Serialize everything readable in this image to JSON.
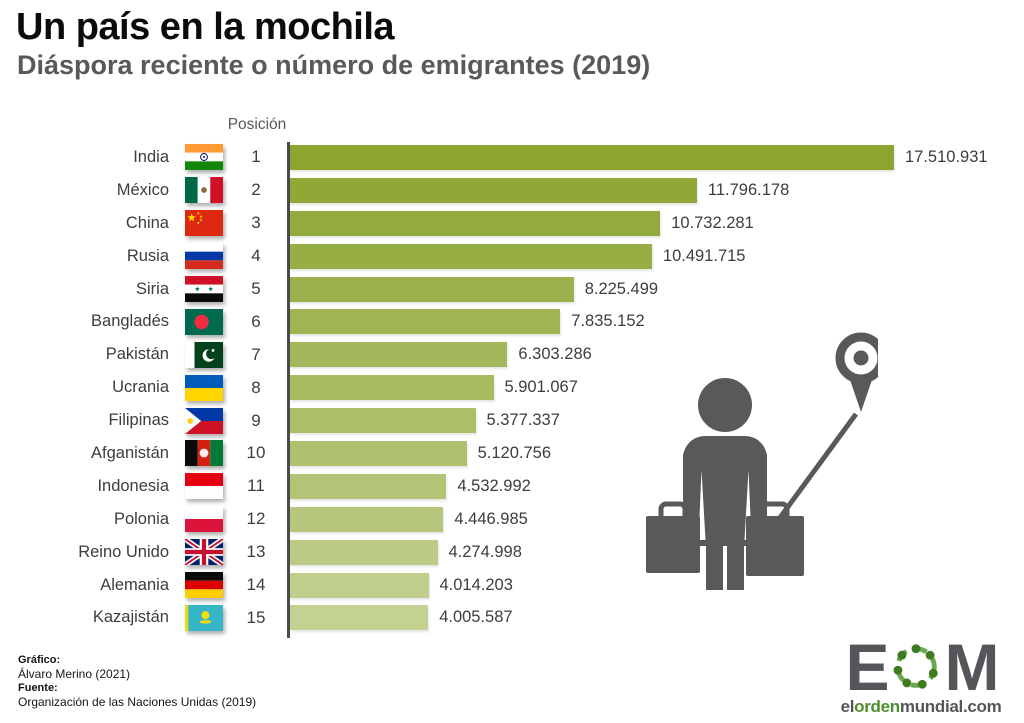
{
  "chart_data": {
    "type": "bar",
    "orientation": "horizontal",
    "title": "Un país en la mochila",
    "subtitle": "Diáspora reciente o número de emigrantes (2019)",
    "position_column_header": "Posición",
    "xlim": [
      0,
      17510931
    ],
    "max_value": 17510931,
    "grid": "off",
    "bar_color_start": "#8BA52F",
    "bar_color_end": "#C3D193",
    "rows": [
      {
        "country": "India",
        "flag": "flag-india",
        "position": 1,
        "value": 17510931,
        "value_label": "17.510.931"
      },
      {
        "country": "México",
        "flag": "flag-mexico",
        "position": 2,
        "value": 11796178,
        "value_label": "11.796.178"
      },
      {
        "country": "China",
        "flag": "flag-china",
        "position": 3,
        "value": 10732281,
        "value_label": "10.732.281"
      },
      {
        "country": "Rusia",
        "flag": "flag-russia",
        "position": 4,
        "value": 10491715,
        "value_label": "10.491.715"
      },
      {
        "country": "Siria",
        "flag": "flag-syria",
        "position": 5,
        "value": 8225499,
        "value_label": "8.225.499"
      },
      {
        "country": "Bangladés",
        "flag": "flag-bangladesh",
        "position": 6,
        "value": 7835152,
        "value_label": "7.835.152"
      },
      {
        "country": "Pakistán",
        "flag": "flag-pakistan",
        "position": 7,
        "value": 6303286,
        "value_label": "6.303.286"
      },
      {
        "country": "Ucrania",
        "flag": "flag-ukraine",
        "position": 8,
        "value": 5901067,
        "value_label": "5.901.067"
      },
      {
        "country": "Filipinas",
        "flag": "flag-philippines",
        "position": 9,
        "value": 5377337,
        "value_label": "5.377.337"
      },
      {
        "country": "Afganistán",
        "flag": "flag-afghanistan",
        "position": 10,
        "value": 5120756,
        "value_label": "5.120.756"
      },
      {
        "country": "Indonesia",
        "flag": "flag-indonesia",
        "position": 11,
        "value": 4532992,
        "value_label": "4.532.992"
      },
      {
        "country": "Polonia",
        "flag": "flag-poland",
        "position": 12,
        "value": 4446985,
        "value_label": "4.446.985"
      },
      {
        "country": "Reino Unido",
        "flag": "flag-uk",
        "position": 13,
        "value": 4274998,
        "value_label": "4.274.998"
      },
      {
        "country": "Alemania",
        "flag": "flag-germany",
        "position": 14,
        "value": 4014203,
        "value_label": "4.014.203"
      },
      {
        "country": "Kazajistán",
        "flag": "flag-kazakhstan",
        "position": 15,
        "value": 4005587,
        "value_label": "4.005.587"
      }
    ]
  },
  "footer": {
    "credit_label": "Gráfico:",
    "credit_value": "Álvaro Merino (2021)",
    "source_label": "Fuente:",
    "source_value": "Organización de las Naciones Unidas (2019)"
  },
  "logo": {
    "letter_left": "E",
    "letter_right": "M",
    "website_prefix": "el",
    "website_green": "orden",
    "website_suffix": "mundial.com",
    "brand_green": "#4D8F2C",
    "brand_gray": "#55565A"
  }
}
